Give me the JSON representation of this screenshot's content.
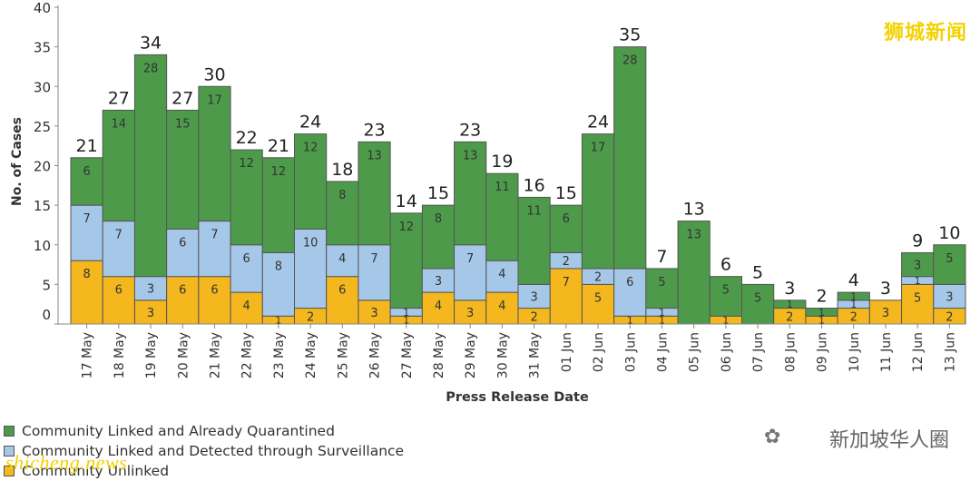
{
  "watermarks": {
    "top_right": "狮城新闻",
    "bottom_right": "新加坡华人圈",
    "bottom_left": "shicheng.news",
    "wechat_icon": "wechat-icon"
  },
  "colors": {
    "quarantined": "#4e9a4b",
    "surveillance": "#a6c8e8",
    "unlinked": "#f4b81e"
  },
  "legend": [
    {
      "label": "Community Linked and Already Quarantined",
      "color": "#4e9a4b"
    },
    {
      "label": "Community Linked and Detected through Surveillance",
      "color": "#a6c8e8"
    },
    {
      "label": "Community Unlinked",
      "color": "#f4b81e"
    }
  ],
  "chart_data": {
    "type": "bar",
    "stacked": true,
    "title": "",
    "xlabel": "Press Release Date",
    "ylabel": "No. of Cases",
    "ylim": [
      0,
      40
    ],
    "yticks": [
      0,
      5,
      10,
      15,
      20,
      25,
      30,
      35,
      40
    ],
    "grid": false,
    "legend_position": "bottom-left",
    "categories": [
      "17 May",
      "18 May",
      "19 May",
      "20 May",
      "21 May",
      "22 May",
      "23 May",
      "24 May",
      "25 May",
      "26 May",
      "27 May",
      "28 May",
      "29 May",
      "30 May",
      "31 May",
      "01 Jun",
      "02 Jun",
      "03 Jun",
      "04 Jun",
      "05 Jun",
      "06 Jun",
      "07 Jun",
      "08 Jun",
      "09 Jun",
      "10 Jun",
      "11 Jun",
      "12 Jun",
      "13 Jun"
    ],
    "series": [
      {
        "name": "Community Unlinked",
        "values": [
          8,
          6,
          3,
          6,
          6,
          4,
          1,
          2,
          6,
          3,
          1,
          4,
          3,
          4,
          2,
          7,
          5,
          1,
          1,
          0,
          1,
          0,
          2,
          1,
          2,
          3,
          5,
          2
        ]
      },
      {
        "name": "Community Linked and Detected through Surveillance",
        "values": [
          7,
          7,
          3,
          6,
          7,
          6,
          8,
          10,
          4,
          7,
          1,
          3,
          7,
          4,
          3,
          2,
          2,
          6,
          1,
          0,
          0,
          0,
          0,
          0,
          1,
          0,
          1,
          3
        ]
      },
      {
        "name": "Community Linked and Already Quarantined",
        "values": [
          6,
          14,
          28,
          15,
          17,
          12,
          12,
          12,
          8,
          13,
          12,
          8,
          13,
          11,
          11,
          6,
          17,
          28,
          5,
          13,
          5,
          5,
          1,
          1,
          1,
          0,
          3,
          5
        ]
      }
    ],
    "totals": [
      21,
      27,
      34,
      27,
      30,
      22,
      21,
      24,
      18,
      23,
      14,
      15,
      23,
      19,
      16,
      15,
      24,
      35,
      7,
      13,
      6,
      5,
      3,
      2,
      4,
      3,
      9,
      10
    ]
  }
}
